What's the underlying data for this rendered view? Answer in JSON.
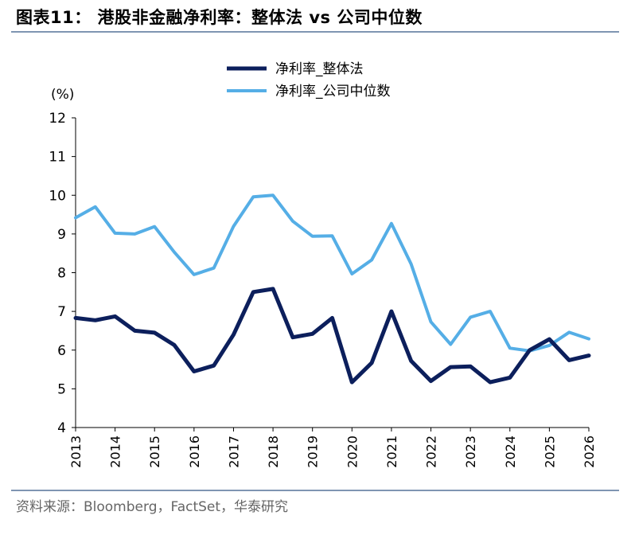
{
  "header": {
    "title": "图表11：  港股非金融净利率：整体法  vs  公司中位数"
  },
  "footer": {
    "source": "资料来源：Bloomberg，FactSet，华泰研究"
  },
  "chart_data": {
    "type": "line",
    "unit_label": "(%)",
    "ylim": [
      4,
      12
    ],
    "yticks": [
      "4",
      "5",
      "6",
      "7",
      "8",
      "9",
      "10",
      "11",
      "12"
    ],
    "xticks": [
      "2013",
      "2014",
      "2015",
      "2016",
      "2017",
      "2018",
      "2019",
      "2020",
      "2021",
      "2022",
      "2023",
      "2024",
      "2025",
      "2026"
    ],
    "x": [
      2013.0,
      2013.5,
      2014.0,
      2014.5,
      2015.0,
      2015.5,
      2016.0,
      2016.5,
      2017.0,
      2017.5,
      2018.0,
      2018.5,
      2019.0,
      2019.5,
      2020.0,
      2020.5,
      2021.0,
      2021.5,
      2022.0,
      2022.5,
      2023.0,
      2023.5,
      2024.0,
      2024.5,
      2025.0,
      2025.5,
      2026.0
    ],
    "legend_position": "top-center",
    "series": [
      {
        "name": "净利率_整体法",
        "color": "#0c1f5c",
        "values": [
          6.83,
          6.77,
          6.87,
          6.5,
          6.45,
          6.13,
          5.45,
          5.6,
          6.4,
          7.5,
          7.58,
          6.33,
          6.42,
          6.83,
          5.17,
          5.67,
          7.0,
          5.72,
          5.2,
          5.56,
          5.58,
          5.17,
          5.29,
          6.0,
          6.28,
          5.74,
          5.86
        ]
      },
      {
        "name": "净利率_公司中位数",
        "color": "#55aee6",
        "values": [
          9.42,
          9.7,
          9.02,
          9.0,
          9.19,
          8.53,
          7.95,
          8.12,
          9.2,
          9.96,
          10.0,
          9.33,
          8.94,
          8.95,
          7.97,
          8.33,
          9.27,
          8.22,
          6.73,
          6.15,
          6.85,
          7.0,
          6.05,
          5.98,
          6.12,
          6.46,
          6.29
        ]
      }
    ]
  }
}
